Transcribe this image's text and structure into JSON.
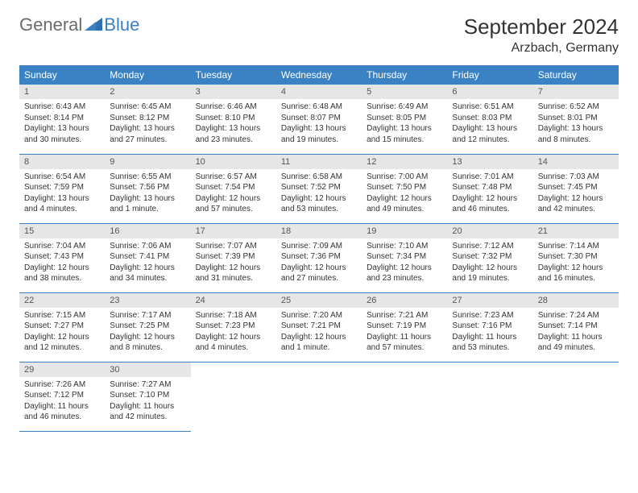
{
  "logo": {
    "general": "General",
    "blue": "Blue"
  },
  "title": "September 2024",
  "location": "Arzbach, Germany",
  "colors": {
    "header_bg": "#3a82c4",
    "header_fg": "#ffffff",
    "daynum_bg": "#e6e6e6",
    "daynum_fg": "#555555",
    "body_fg": "#333333",
    "rule": "#3a82c4",
    "logo_gray": "#6b6b6b",
    "logo_blue": "#3a7fc4"
  },
  "days_of_week": [
    "Sunday",
    "Monday",
    "Tuesday",
    "Wednesday",
    "Thursday",
    "Friday",
    "Saturday"
  ],
  "weeks": [
    [
      {
        "n": "1",
        "sr": "Sunrise: 6:43 AM",
        "ss": "Sunset: 8:14 PM",
        "d1": "Daylight: 13 hours",
        "d2": "and 30 minutes."
      },
      {
        "n": "2",
        "sr": "Sunrise: 6:45 AM",
        "ss": "Sunset: 8:12 PM",
        "d1": "Daylight: 13 hours",
        "d2": "and 27 minutes."
      },
      {
        "n": "3",
        "sr": "Sunrise: 6:46 AM",
        "ss": "Sunset: 8:10 PM",
        "d1": "Daylight: 13 hours",
        "d2": "and 23 minutes."
      },
      {
        "n": "4",
        "sr": "Sunrise: 6:48 AM",
        "ss": "Sunset: 8:07 PM",
        "d1": "Daylight: 13 hours",
        "d2": "and 19 minutes."
      },
      {
        "n": "5",
        "sr": "Sunrise: 6:49 AM",
        "ss": "Sunset: 8:05 PM",
        "d1": "Daylight: 13 hours",
        "d2": "and 15 minutes."
      },
      {
        "n": "6",
        "sr": "Sunrise: 6:51 AM",
        "ss": "Sunset: 8:03 PM",
        "d1": "Daylight: 13 hours",
        "d2": "and 12 minutes."
      },
      {
        "n": "7",
        "sr": "Sunrise: 6:52 AM",
        "ss": "Sunset: 8:01 PM",
        "d1": "Daylight: 13 hours",
        "d2": "and 8 minutes."
      }
    ],
    [
      {
        "n": "8",
        "sr": "Sunrise: 6:54 AM",
        "ss": "Sunset: 7:59 PM",
        "d1": "Daylight: 13 hours",
        "d2": "and 4 minutes."
      },
      {
        "n": "9",
        "sr": "Sunrise: 6:55 AM",
        "ss": "Sunset: 7:56 PM",
        "d1": "Daylight: 13 hours",
        "d2": "and 1 minute."
      },
      {
        "n": "10",
        "sr": "Sunrise: 6:57 AM",
        "ss": "Sunset: 7:54 PM",
        "d1": "Daylight: 12 hours",
        "d2": "and 57 minutes."
      },
      {
        "n": "11",
        "sr": "Sunrise: 6:58 AM",
        "ss": "Sunset: 7:52 PM",
        "d1": "Daylight: 12 hours",
        "d2": "and 53 minutes."
      },
      {
        "n": "12",
        "sr": "Sunrise: 7:00 AM",
        "ss": "Sunset: 7:50 PM",
        "d1": "Daylight: 12 hours",
        "d2": "and 49 minutes."
      },
      {
        "n": "13",
        "sr": "Sunrise: 7:01 AM",
        "ss": "Sunset: 7:48 PM",
        "d1": "Daylight: 12 hours",
        "d2": "and 46 minutes."
      },
      {
        "n": "14",
        "sr": "Sunrise: 7:03 AM",
        "ss": "Sunset: 7:45 PM",
        "d1": "Daylight: 12 hours",
        "d2": "and 42 minutes."
      }
    ],
    [
      {
        "n": "15",
        "sr": "Sunrise: 7:04 AM",
        "ss": "Sunset: 7:43 PM",
        "d1": "Daylight: 12 hours",
        "d2": "and 38 minutes."
      },
      {
        "n": "16",
        "sr": "Sunrise: 7:06 AM",
        "ss": "Sunset: 7:41 PM",
        "d1": "Daylight: 12 hours",
        "d2": "and 34 minutes."
      },
      {
        "n": "17",
        "sr": "Sunrise: 7:07 AM",
        "ss": "Sunset: 7:39 PM",
        "d1": "Daylight: 12 hours",
        "d2": "and 31 minutes."
      },
      {
        "n": "18",
        "sr": "Sunrise: 7:09 AM",
        "ss": "Sunset: 7:36 PM",
        "d1": "Daylight: 12 hours",
        "d2": "and 27 minutes."
      },
      {
        "n": "19",
        "sr": "Sunrise: 7:10 AM",
        "ss": "Sunset: 7:34 PM",
        "d1": "Daylight: 12 hours",
        "d2": "and 23 minutes."
      },
      {
        "n": "20",
        "sr": "Sunrise: 7:12 AM",
        "ss": "Sunset: 7:32 PM",
        "d1": "Daylight: 12 hours",
        "d2": "and 19 minutes."
      },
      {
        "n": "21",
        "sr": "Sunrise: 7:14 AM",
        "ss": "Sunset: 7:30 PM",
        "d1": "Daylight: 12 hours",
        "d2": "and 16 minutes."
      }
    ],
    [
      {
        "n": "22",
        "sr": "Sunrise: 7:15 AM",
        "ss": "Sunset: 7:27 PM",
        "d1": "Daylight: 12 hours",
        "d2": "and 12 minutes."
      },
      {
        "n": "23",
        "sr": "Sunrise: 7:17 AM",
        "ss": "Sunset: 7:25 PM",
        "d1": "Daylight: 12 hours",
        "d2": "and 8 minutes."
      },
      {
        "n": "24",
        "sr": "Sunrise: 7:18 AM",
        "ss": "Sunset: 7:23 PM",
        "d1": "Daylight: 12 hours",
        "d2": "and 4 minutes."
      },
      {
        "n": "25",
        "sr": "Sunrise: 7:20 AM",
        "ss": "Sunset: 7:21 PM",
        "d1": "Daylight: 12 hours",
        "d2": "and 1 minute."
      },
      {
        "n": "26",
        "sr": "Sunrise: 7:21 AM",
        "ss": "Sunset: 7:19 PM",
        "d1": "Daylight: 11 hours",
        "d2": "and 57 minutes."
      },
      {
        "n": "27",
        "sr": "Sunrise: 7:23 AM",
        "ss": "Sunset: 7:16 PM",
        "d1": "Daylight: 11 hours",
        "d2": "and 53 minutes."
      },
      {
        "n": "28",
        "sr": "Sunrise: 7:24 AM",
        "ss": "Sunset: 7:14 PM",
        "d1": "Daylight: 11 hours",
        "d2": "and 49 minutes."
      }
    ],
    [
      {
        "n": "29",
        "sr": "Sunrise: 7:26 AM",
        "ss": "Sunset: 7:12 PM",
        "d1": "Daylight: 11 hours",
        "d2": "and 46 minutes."
      },
      {
        "n": "30",
        "sr": "Sunrise: 7:27 AM",
        "ss": "Sunset: 7:10 PM",
        "d1": "Daylight: 11 hours",
        "d2": "and 42 minutes."
      },
      null,
      null,
      null,
      null,
      null
    ]
  ]
}
